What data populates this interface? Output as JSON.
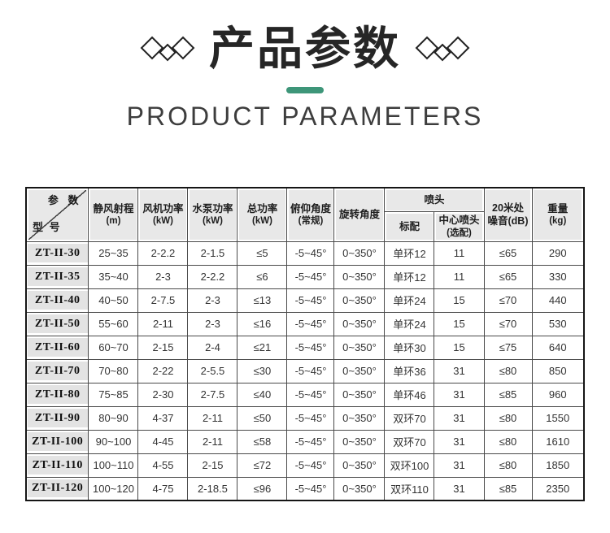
{
  "header": {
    "title": "产品参数",
    "subtitle": "PRODUCT PARAMETERS",
    "accent_color": "#3E9679",
    "decor_icon": "triple-diamond"
  },
  "table": {
    "corner": {
      "top_right": "参 数",
      "bottom_left": "型 号"
    },
    "columns": [
      {
        "line1": "静风射程",
        "line2": "(m)"
      },
      {
        "line1": "风机功率",
        "line2": "(kW)"
      },
      {
        "line1": "水泵功率",
        "line2": "(kW)"
      },
      {
        "line1": "总功率",
        "line2": "(kW)"
      },
      {
        "line1": "俯仰角度",
        "line2": "(常规)"
      },
      {
        "line1": "旋转角度",
        "line2": ""
      },
      {
        "line1": "20米处",
        "line2": "噪音(dB)"
      },
      {
        "line1": "重量",
        "line2": "(kg)"
      }
    ],
    "nozzle_group": {
      "label": "喷头",
      "std": "标配",
      "center_line1": "中心喷头",
      "center_line2": "(选配)"
    },
    "row_keys": [
      "model",
      "range",
      "fan",
      "pump",
      "total",
      "pitch",
      "rotation",
      "nozzle_std",
      "nozzle_center",
      "noise",
      "weight"
    ],
    "rows": [
      {
        "model": "ZT-II-30",
        "range": "25~35",
        "fan": "2-2.2",
        "pump": "2-1.5",
        "total": "≤5",
        "pitch": "-5~45°",
        "rotation": "0~350°",
        "nozzle_std": "单环12",
        "nozzle_center": "11",
        "noise": "≤65",
        "weight": "290"
      },
      {
        "model": "ZT-II-35",
        "range": "35~40",
        "fan": "2-3",
        "pump": "2-2.2",
        "total": "≤6",
        "pitch": "-5~45°",
        "rotation": "0~350°",
        "nozzle_std": "单环12",
        "nozzle_center": "11",
        "noise": "≤65",
        "weight": "330"
      },
      {
        "model": "ZT-II-40",
        "range": "40~50",
        "fan": "2-7.5",
        "pump": "2-3",
        "total": "≤13",
        "pitch": "-5~45°",
        "rotation": "0~350°",
        "nozzle_std": "单环24",
        "nozzle_center": "15",
        "noise": "≤70",
        "weight": "440"
      },
      {
        "model": "ZT-II-50",
        "range": "55~60",
        "fan": "2-11",
        "pump": "2-3",
        "total": "≤16",
        "pitch": "-5~45°",
        "rotation": "0~350°",
        "nozzle_std": "单环24",
        "nozzle_center": "15",
        "noise": "≤70",
        "weight": "530"
      },
      {
        "model": "ZT-II-60",
        "range": "60~70",
        "fan": "2-15",
        "pump": "2-4",
        "total": "≤21",
        "pitch": "-5~45°",
        "rotation": "0~350°",
        "nozzle_std": "单环30",
        "nozzle_center": "15",
        "noise": "≤75",
        "weight": "640"
      },
      {
        "model": "ZT-II-70",
        "range": "70~80",
        "fan": "2-22",
        "pump": "2-5.5",
        "total": "≤30",
        "pitch": "-5~45°",
        "rotation": "0~350°",
        "nozzle_std": "单环36",
        "nozzle_center": "31",
        "noise": "≤80",
        "weight": "850"
      },
      {
        "model": "ZT-II-80",
        "range": "75~85",
        "fan": "2-30",
        "pump": "2-7.5",
        "total": "≤40",
        "pitch": "-5~45°",
        "rotation": "0~350°",
        "nozzle_std": "单环46",
        "nozzle_center": "31",
        "noise": "≤85",
        "weight": "960"
      },
      {
        "model": "ZT-II-90",
        "range": "80~90",
        "fan": "4-37",
        "pump": "2-11",
        "total": "≤50",
        "pitch": "-5~45°",
        "rotation": "0~350°",
        "nozzle_std": "双环70",
        "nozzle_center": "31",
        "noise": "≤80",
        "weight": "1550"
      },
      {
        "model": "ZT-II-100",
        "range": "90~100",
        "fan": "4-45",
        "pump": "2-11",
        "total": "≤58",
        "pitch": "-5~45°",
        "rotation": "0~350°",
        "nozzle_std": "双环70",
        "nozzle_center": "31",
        "noise": "≤80",
        "weight": "1610"
      },
      {
        "model": "ZT-II-110",
        "range": "100~110",
        "fan": "4-55",
        "pump": "2-15",
        "total": "≤72",
        "pitch": "-5~45°",
        "rotation": "0~350°",
        "nozzle_std": "双环100",
        "nozzle_center": "31",
        "noise": "≤80",
        "weight": "1850"
      },
      {
        "model": "ZT-II-120",
        "range": "100~120",
        "fan": "4-75",
        "pump": "2-18.5",
        "total": "≤96",
        "pitch": "-5~45°",
        "rotation": "0~350°",
        "nozzle_std": "双环110",
        "nozzle_center": "31",
        "noise": "≤85",
        "weight": "2350"
      }
    ]
  }
}
